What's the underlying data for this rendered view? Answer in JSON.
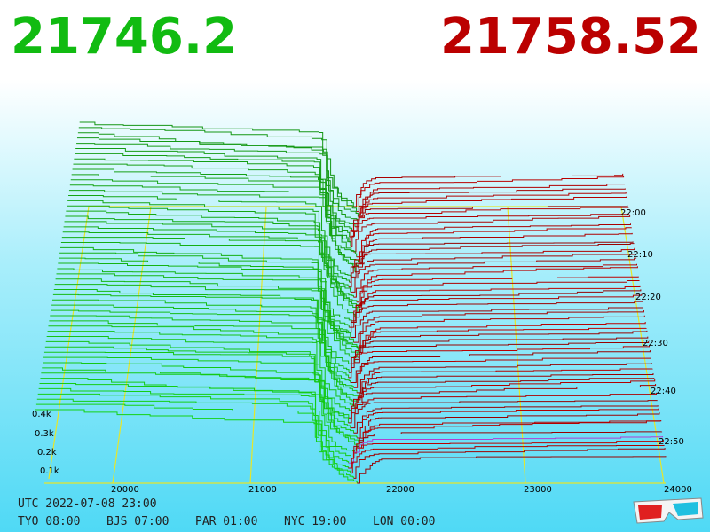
{
  "bid": "21746.2",
  "ask": "21758.52",
  "price_axis": [
    "20000",
    "21000",
    "22000",
    "23000",
    "24000"
  ],
  "time_axis": [
    "22:00",
    "22:10",
    "22:20",
    "22:30",
    "22:40",
    "22:50"
  ],
  "volume_axis": [
    "0.4k",
    "0.3k",
    "0.2k",
    "0.1k"
  ],
  "footer": {
    "utc": "UTC 2022-07-08 23:00",
    "clocks": [
      "TYO 08:00",
      "BJS 07:00",
      "PAR 01:00",
      "NYC 19:00",
      "LON 00:00"
    ]
  }
}
